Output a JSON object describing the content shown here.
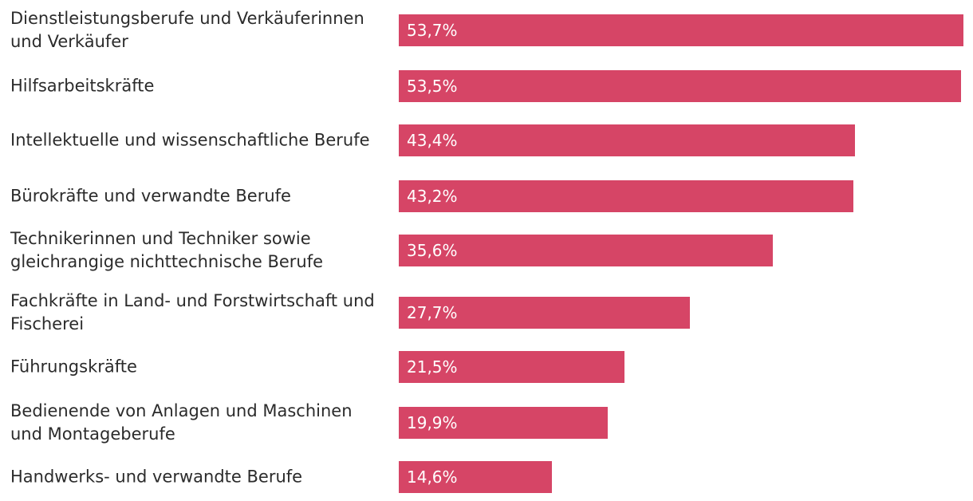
{
  "chart_data": {
    "type": "bar",
    "orientation": "horizontal",
    "title": "",
    "xlabel": "",
    "ylabel": "",
    "xlim": [
      0,
      53.7
    ],
    "bar_color": "#d64566",
    "categories": [
      "Dienstleistungsberufe und Verkäuferinnen und Verkäufer",
      "Hilfsarbeitskräfte",
      "Intellektuelle und wissenschaftliche Berufe",
      "Bürokräfte und verwandte Berufe",
      "Technikerinnen und Techniker sowie gleichrangige nichttechnische Berufe",
      "Fachkräfte in Land- und Forstwirtschaft und Fischerei",
      "Führungskräfte",
      "Bedienende von Anlagen und Maschinen und Montageberufe",
      "Handwerks- und verwandte Berufe"
    ],
    "values": [
      53.7,
      53.5,
      43.4,
      43.2,
      35.6,
      27.7,
      21.5,
      19.9,
      14.6
    ],
    "value_labels": [
      "53,7%",
      "53,5%",
      "43,4%",
      "43,2%",
      "35,6%",
      "27,7%",
      "21,5%",
      "19,9%",
      "14,6%"
    ]
  }
}
